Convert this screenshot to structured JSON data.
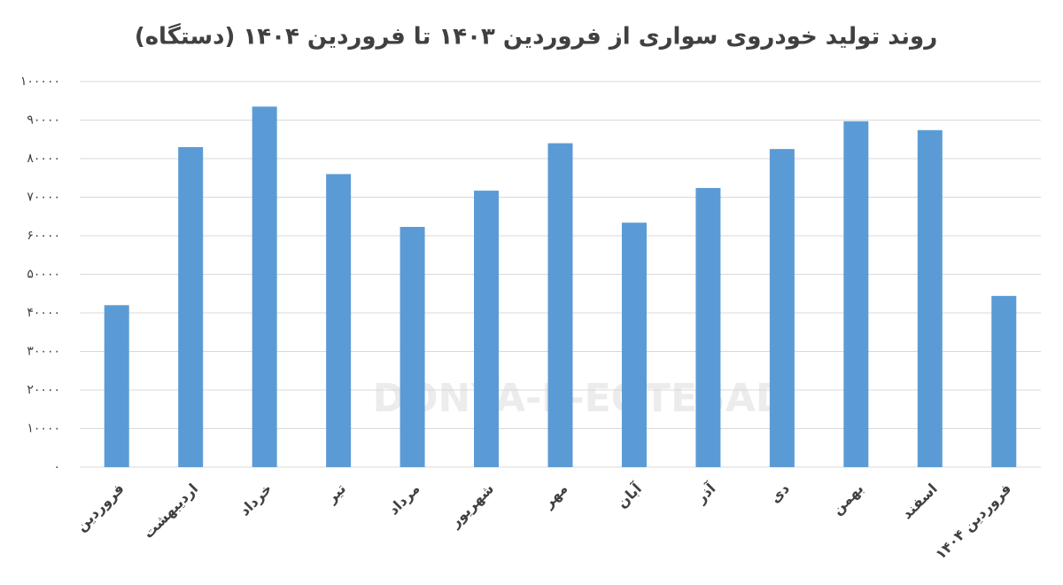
{
  "chart_data": {
    "type": "bar",
    "title": "روند تولید خودروی سواری از فروردین ۱۴۰۳ تا فروردین ۱۴۰۴ (دستگاه)",
    "watermark": "DONYA-E-EQTESAD",
    "categories": [
      "فروردین",
      "اردیبهشت",
      "خرداد",
      "تیر",
      "مرداد",
      "شهریور",
      "مهر",
      "آبان",
      "آذر",
      "دی",
      "بهمن",
      "اسفند",
      "فروردین ۱۴۰۴"
    ],
    "values": [
      42000,
      83000,
      93500,
      76000,
      62300,
      71700,
      84000,
      63400,
      72400,
      82500,
      89700,
      87400,
      44400
    ],
    "color": "#5b9bd5",
    "ylim": [
      0,
      100000
    ],
    "yticks": [
      {
        "value": 0,
        "label": "۰"
      },
      {
        "value": 10000,
        "label": "۱۰۰۰۰"
      },
      {
        "value": 20000,
        "label": "۲۰۰۰۰"
      },
      {
        "value": 30000,
        "label": "۳۰۰۰۰"
      },
      {
        "value": 40000,
        "label": "۴۰۰۰۰"
      },
      {
        "value": 50000,
        "label": "۵۰۰۰۰"
      },
      {
        "value": 60000,
        "label": "۶۰۰۰۰"
      },
      {
        "value": 70000,
        "label": "۷۰۰۰۰"
      },
      {
        "value": 80000,
        "label": "۸۰۰۰۰"
      },
      {
        "value": 90000,
        "label": "۹۰۰۰۰"
      },
      {
        "value": 100000,
        "label": "۱۰۰۰۰۰"
      }
    ],
    "grid": true
  }
}
